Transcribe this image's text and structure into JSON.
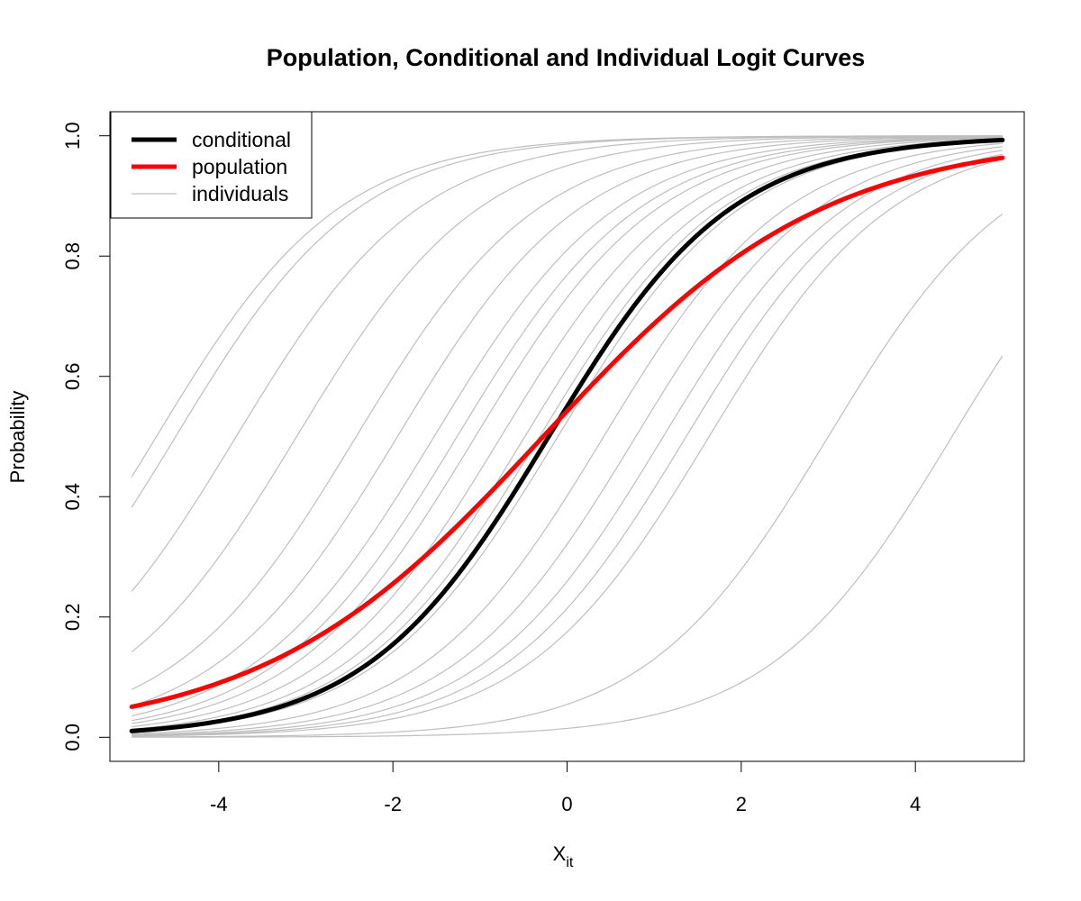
{
  "chart_data": {
    "type": "line",
    "title": "Population, Conditional and Individual Logit Curves",
    "xlabel": "X",
    "xlabel_subscript": "it",
    "ylabel": "Probability",
    "xlim": [
      -5.25,
      5.25
    ],
    "ylim": [
      -0.04,
      1.04
    ],
    "xticks": [
      -4,
      -2,
      0,
      2,
      4
    ],
    "xtick_labels": [
      "-4",
      "-2",
      "0",
      "2",
      "4"
    ],
    "yticks": [
      0.0,
      0.2,
      0.4,
      0.6,
      0.8,
      1.0
    ],
    "ytick_labels": [
      "0.0",
      "0.2",
      "0.4",
      "0.6",
      "0.8",
      "1.0"
    ],
    "x_range": [
      -5,
      5
    ],
    "grid": false,
    "legend": {
      "position": "top-left",
      "entries": [
        {
          "label": "conditional",
          "color": "#000000",
          "width": 5
        },
        {
          "label": "population",
          "color": "#ff0000",
          "width": 5
        },
        {
          "label": "individuals",
          "color": "#bebebe",
          "width": 1.2
        }
      ]
    },
    "series": [
      {
        "name": "conditional",
        "color": "#000000",
        "model": "logit",
        "intercept": 0.2,
        "slope": 0.95
      },
      {
        "name": "population",
        "color": "#ff0000",
        "model": "logit",
        "intercept": 0.17,
        "slope": 0.62
      },
      {
        "name": "individuals",
        "color": "#bebebe",
        "model": "logit",
        "slope": 0.95,
        "intercepts": [
          4.48,
          4.27,
          3.61,
          2.95,
          2.3,
          1.85,
          1.45,
          1.2,
          1.0,
          0.72,
          0.46,
          0.3,
          0.1,
          -0.4,
          -0.75,
          -1.05,
          -1.3,
          -1.55,
          -2.85,
          -4.2
        ]
      }
    ]
  }
}
